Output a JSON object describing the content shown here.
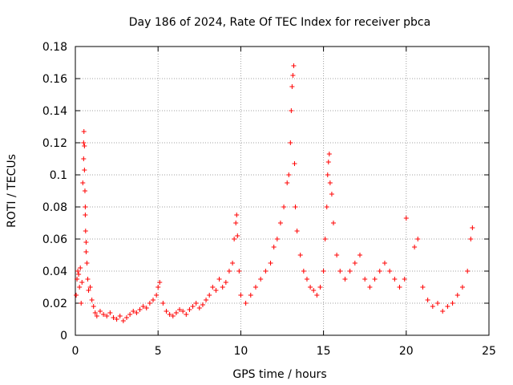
{
  "chart_data": {
    "type": "scatter",
    "title": "Day 186 of 2024, Rate Of TEC Index for receiver pbca",
    "xlabel": "GPS time / hours",
    "ylabel": "ROTI / TECUs",
    "xlim": [
      0,
      25
    ],
    "ylim": [
      0,
      0.18
    ],
    "x_ticks": [
      0,
      5,
      10,
      15,
      20,
      25
    ],
    "x_tick_labels": [
      "0",
      "5",
      "10",
      "15",
      "20",
      "25"
    ],
    "y_ticks": [
      0,
      0.02,
      0.04,
      0.06,
      0.08,
      0.1,
      0.12,
      0.14,
      0.16,
      0.18
    ],
    "y_tick_labels": [
      "0",
      "0.02",
      "0.04",
      "0.06",
      "0.08",
      "0.1",
      "0.12",
      "0.14",
      "0.16",
      "0.18"
    ],
    "grid": true,
    "marker": "+",
    "colors": {
      "series": "#ff0000",
      "grid": "#a0a0a0",
      "axis": "#000000"
    },
    "series": [
      {
        "name": "ROTI",
        "points": [
          [
            0.05,
            0.025
          ],
          [
            0.1,
            0.035
          ],
          [
            0.15,
            0.04
          ],
          [
            0.2,
            0.038
          ],
          [
            0.25,
            0.03
          ],
          [
            0.3,
            0.042
          ],
          [
            0.35,
            0.02
          ],
          [
            0.4,
            0.033
          ],
          [
            0.45,
            0.095
          ],
          [
            0.5,
            0.11
          ],
          [
            0.5,
            0.12
          ],
          [
            0.52,
            0.127
          ],
          [
            0.55,
            0.118
          ],
          [
            0.55,
            0.103
          ],
          [
            0.58,
            0.09
          ],
          [
            0.6,
            0.08
          ],
          [
            0.6,
            0.075
          ],
          [
            0.62,
            0.065
          ],
          [
            0.65,
            0.058
          ],
          [
            0.65,
            0.052
          ],
          [
            0.7,
            0.045
          ],
          [
            0.75,
            0.035
          ],
          [
            0.8,
            0.028
          ],
          [
            0.9,
            0.03
          ],
          [
            1.0,
            0.022
          ],
          [
            1.1,
            0.018
          ],
          [
            1.2,
            0.014
          ],
          [
            1.3,
            0.012
          ],
          [
            1.5,
            0.015
          ],
          [
            1.7,
            0.013
          ],
          [
            1.9,
            0.012
          ],
          [
            2.1,
            0.014
          ],
          [
            2.3,
            0.011
          ],
          [
            2.5,
            0.01
          ],
          [
            2.7,
            0.012
          ],
          [
            2.9,
            0.009
          ],
          [
            3.1,
            0.011
          ],
          [
            3.3,
            0.013
          ],
          [
            3.5,
            0.015
          ],
          [
            3.7,
            0.014
          ],
          [
            3.9,
            0.016
          ],
          [
            4.1,
            0.018
          ],
          [
            4.3,
            0.017
          ],
          [
            4.5,
            0.02
          ],
          [
            4.7,
            0.022
          ],
          [
            4.9,
            0.025
          ],
          [
            5.0,
            0.03
          ],
          [
            5.1,
            0.033
          ],
          [
            5.3,
            0.02
          ],
          [
            5.5,
            0.015
          ],
          [
            5.7,
            0.013
          ],
          [
            5.9,
            0.012
          ],
          [
            6.1,
            0.014
          ],
          [
            6.3,
            0.016
          ],
          [
            6.5,
            0.015
          ],
          [
            6.7,
            0.013
          ],
          [
            6.9,
            0.016
          ],
          [
            7.1,
            0.018
          ],
          [
            7.3,
            0.02
          ],
          [
            7.5,
            0.017
          ],
          [
            7.7,
            0.019
          ],
          [
            7.9,
            0.022
          ],
          [
            8.1,
            0.025
          ],
          [
            8.3,
            0.03
          ],
          [
            8.5,
            0.028
          ],
          [
            8.7,
            0.035
          ],
          [
            8.9,
            0.03
          ],
          [
            9.1,
            0.033
          ],
          [
            9.3,
            0.04
          ],
          [
            9.5,
            0.045
          ],
          [
            9.6,
            0.06
          ],
          [
            9.7,
            0.07
          ],
          [
            9.75,
            0.075
          ],
          [
            9.8,
            0.062
          ],
          [
            9.9,
            0.04
          ],
          [
            10.0,
            0.025
          ],
          [
            10.3,
            0.02
          ],
          [
            10.6,
            0.025
          ],
          [
            10.9,
            0.03
          ],
          [
            11.2,
            0.035
          ],
          [
            11.5,
            0.04
          ],
          [
            11.8,
            0.045
          ],
          [
            12.0,
            0.055
          ],
          [
            12.2,
            0.06
          ],
          [
            12.4,
            0.07
          ],
          [
            12.6,
            0.08
          ],
          [
            12.8,
            0.095
          ],
          [
            12.9,
            0.1
          ],
          [
            13.0,
            0.12
          ],
          [
            13.05,
            0.14
          ],
          [
            13.1,
            0.155
          ],
          [
            13.15,
            0.162
          ],
          [
            13.2,
            0.168
          ],
          [
            13.25,
            0.107
          ],
          [
            13.3,
            0.08
          ],
          [
            13.4,
            0.065
          ],
          [
            13.6,
            0.05
          ],
          [
            13.8,
            0.04
          ],
          [
            14.0,
            0.035
          ],
          [
            14.2,
            0.03
          ],
          [
            14.4,
            0.028
          ],
          [
            14.6,
            0.025
          ],
          [
            14.8,
            0.03
          ],
          [
            15.0,
            0.04
          ],
          [
            15.1,
            0.06
          ],
          [
            15.2,
            0.08
          ],
          [
            15.25,
            0.1
          ],
          [
            15.3,
            0.108
          ],
          [
            15.35,
            0.113
          ],
          [
            15.4,
            0.095
          ],
          [
            15.5,
            0.088
          ],
          [
            15.6,
            0.07
          ],
          [
            15.8,
            0.05
          ],
          [
            16.0,
            0.04
          ],
          [
            16.3,
            0.035
          ],
          [
            16.6,
            0.04
          ],
          [
            16.9,
            0.045
          ],
          [
            17.2,
            0.05
          ],
          [
            17.5,
            0.035
          ],
          [
            17.8,
            0.03
          ],
          [
            18.1,
            0.035
          ],
          [
            18.4,
            0.04
          ],
          [
            18.7,
            0.045
          ],
          [
            19.0,
            0.04
          ],
          [
            19.3,
            0.035
          ],
          [
            19.6,
            0.03
          ],
          [
            19.9,
            0.035
          ],
          [
            20.0,
            0.073
          ],
          [
            20.5,
            0.055
          ],
          [
            20.7,
            0.06
          ],
          [
            21.0,
            0.03
          ],
          [
            21.3,
            0.022
          ],
          [
            21.6,
            0.018
          ],
          [
            21.9,
            0.02
          ],
          [
            22.2,
            0.015
          ],
          [
            22.5,
            0.018
          ],
          [
            22.8,
            0.02
          ],
          [
            23.1,
            0.025
          ],
          [
            23.4,
            0.03
          ],
          [
            23.7,
            0.04
          ],
          [
            23.9,
            0.06
          ],
          [
            24.0,
            0.067
          ]
        ]
      }
    ]
  }
}
